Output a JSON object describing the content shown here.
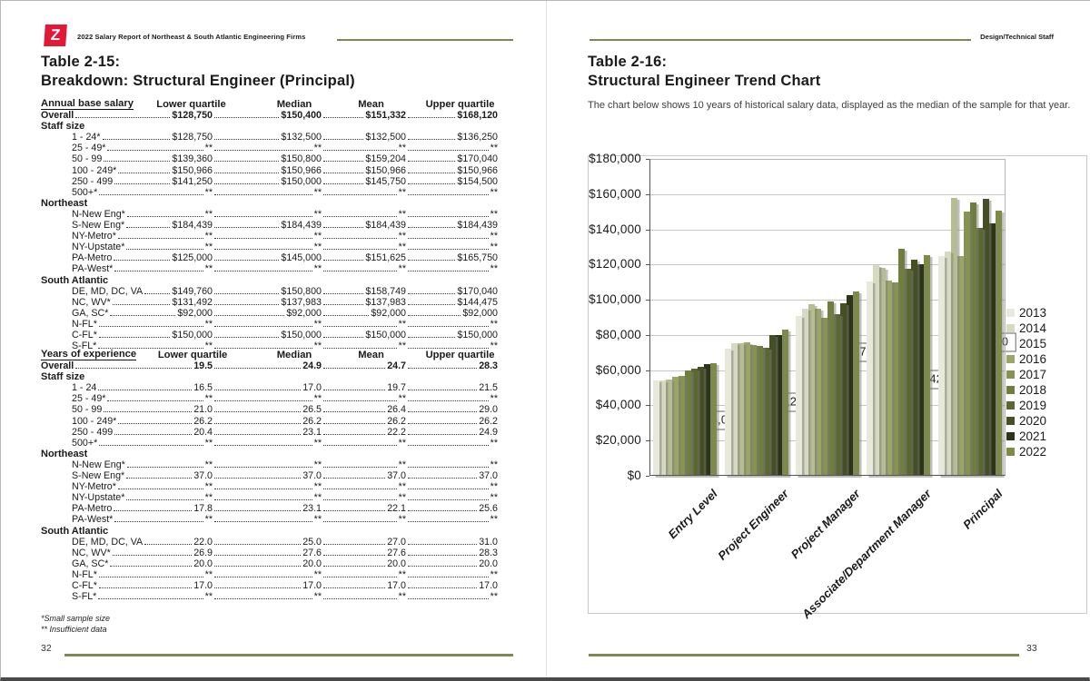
{
  "page_left": {
    "logo_glyph": "Z",
    "header_title": "2022 Salary Report of Northeast & South Atlantic Engineering Firms",
    "title_line1": "Table 2-15:",
    "title_line2": "Breakdown: Structural Engineer (Principal)",
    "tables": [
      {
        "header": {
          "label": "Annual base salary",
          "cols": [
            "Lower quartile",
            "Median",
            "Mean",
            "Upper quartile"
          ]
        },
        "rows": [
          {
            "label": "Overall",
            "style": "overall",
            "values": [
              "$128,750",
              "$150,400",
              "$151,332",
              "$168,120"
            ]
          },
          {
            "label": "Staff size",
            "style": "section"
          },
          {
            "label": "1 - 24*",
            "values": [
              "$128,750",
              "$132,500",
              "$132,500",
              "$136,250"
            ]
          },
          {
            "label": "25 - 49*",
            "values": [
              "**",
              "**",
              "**",
              "**"
            ]
          },
          {
            "label": "50 - 99",
            "values": [
              "$139,360",
              "$150,800",
              "$159,204",
              "$170,040"
            ]
          },
          {
            "label": "100 - 249*",
            "values": [
              "$150,966",
              "$150,966",
              "$150,966",
              "$150,966"
            ]
          },
          {
            "label": "250 - 499",
            "values": [
              "$141,250",
              "$150,000",
              "$145,750",
              "$154,500"
            ]
          },
          {
            "label": "500+*",
            "values": [
              "**",
              "**",
              "**",
              "**"
            ]
          },
          {
            "label": "Northeast",
            "style": "section"
          },
          {
            "label": "N-New Eng*",
            "values": [
              "**",
              "**",
              "**",
              "**"
            ]
          },
          {
            "label": "S-New Eng*",
            "values": [
              "$184,439",
              "$184,439",
              "$184,439",
              "$184,439"
            ]
          },
          {
            "label": "NY-Metro*",
            "values": [
              "**",
              "**",
              "**",
              "**"
            ]
          },
          {
            "label": "NY-Upstate*",
            "values": [
              "**",
              "**",
              "**",
              "**"
            ]
          },
          {
            "label": "PA-Metro",
            "values": [
              "$125,000",
              "$145,000",
              "$151,625",
              "$165,750"
            ]
          },
          {
            "label": "PA-West*",
            "values": [
              "**",
              "**",
              "**",
              "**"
            ]
          },
          {
            "label": "South Atlantic",
            "style": "section"
          },
          {
            "label": "DE, MD, DC, VA",
            "values": [
              "$149,760",
              "$150,800",
              "$158,749",
              "$170,040"
            ]
          },
          {
            "label": "NC, WV*",
            "values": [
              "$131,492",
              "$137,983",
              "$137,983",
              "$144,475"
            ]
          },
          {
            "label": "GA, SC*",
            "values": [
              "$92,000",
              "$92,000",
              "$92,000",
              "$92,000"
            ]
          },
          {
            "label": "N-FL*",
            "values": [
              "**",
              "**",
              "**",
              "**"
            ]
          },
          {
            "label": "C-FL*",
            "values": [
              "$150,000",
              "$150,000",
              "$150,000",
              "$150,000"
            ]
          },
          {
            "label": "S-FL*",
            "values": [
              "**",
              "**",
              "**",
              "**"
            ]
          }
        ]
      },
      {
        "header": {
          "label": "Years of experience",
          "cols": [
            "Lower quartile",
            "Median",
            "Mean",
            "Upper quartile"
          ]
        },
        "rows": [
          {
            "label": "Overall",
            "style": "overall",
            "values": [
              "19.5",
              "24.9",
              "24.7",
              "28.3"
            ]
          },
          {
            "label": "Staff size",
            "style": "section"
          },
          {
            "label": "1 - 24",
            "values": [
              "16.5",
              "17.0",
              "19.7",
              "21.5"
            ]
          },
          {
            "label": "25 - 49*",
            "values": [
              "**",
              "**",
              "**",
              "**"
            ]
          },
          {
            "label": "50 - 99",
            "values": [
              "21.0",
              "26.5",
              "26.4",
              "29.0"
            ]
          },
          {
            "label": "100 - 249*",
            "values": [
              "26.2",
              "26.2",
              "26.2",
              "26.2"
            ]
          },
          {
            "label": "250 - 499",
            "values": [
              "20.4",
              "23.1",
              "22.2",
              "24.9"
            ]
          },
          {
            "label": "500+*",
            "values": [
              "**",
              "**",
              "**",
              "**"
            ]
          },
          {
            "label": "Northeast",
            "style": "section"
          },
          {
            "label": "N-New Eng*",
            "values": [
              "**",
              "**",
              "**",
              "**"
            ]
          },
          {
            "label": "S-New Eng*",
            "values": [
              "37.0",
              "37.0",
              "37.0",
              "37.0"
            ]
          },
          {
            "label": "NY-Metro*",
            "values": [
              "**",
              "**",
              "**",
              "**"
            ]
          },
          {
            "label": "NY-Upstate*",
            "values": [
              "**",
              "**",
              "**",
              "**"
            ]
          },
          {
            "label": "PA-Metro",
            "values": [
              "17.8",
              "23.1",
              "22.1",
              "25.6"
            ]
          },
          {
            "label": "PA-West*",
            "values": [
              "**",
              "**",
              "**",
              "**"
            ]
          },
          {
            "label": "South Atlantic",
            "style": "section"
          },
          {
            "label": "DE, MD, DC, VA",
            "values": [
              "22.0",
              "25.0",
              "27.0",
              "31.0"
            ]
          },
          {
            "label": "NC, WV*",
            "values": [
              "26.9",
              "27.6",
              "27.6",
              "28.3"
            ]
          },
          {
            "label": "GA, SC*",
            "values": [
              "20.0",
              "20.0",
              "20.0",
              "20.0"
            ]
          },
          {
            "label": "N-FL*",
            "values": [
              "**",
              "**",
              "**",
              "**"
            ]
          },
          {
            "label": "C-FL*",
            "values": [
              "17.0",
              "17.0",
              "17.0",
              "17.0"
            ]
          },
          {
            "label": "S-FL*",
            "values": [
              "**",
              "**",
              "**",
              "**"
            ]
          }
        ]
      }
    ],
    "footnotes": [
      "*Small sample size",
      "** Insufficient data"
    ],
    "page_number": "32"
  },
  "page_right": {
    "header_title": "Design/Technical Staff",
    "title_line1": "Table 2-16:",
    "title_line2": "Structural Engineer Trend Chart",
    "intro": "The chart below shows 10 years of historical salary data, displayed as the median of the sample for that year.",
    "page_number": "33"
  },
  "chart_data": {
    "type": "bar",
    "title": "Structural Engineer Trend Chart",
    "xlabel": "",
    "ylabel": "",
    "categories": [
      "Entry Level",
      "Project Engineer",
      "Project Manager",
      "Associate/Department Manager",
      "Principal"
    ],
    "series": [
      {
        "name": "2013",
        "color": "#e8e9db",
        "values": [
          54000,
          72000,
          91000,
          110500,
          125000
        ]
      },
      {
        "name": "2014",
        "color": "#d7d9c1",
        "values": [
          54000,
          75500,
          95000,
          119500,
          127500
        ]
      },
      {
        "name": "2015",
        "color": "#b7bd92",
        "values": [
          54500,
          75500,
          97500,
          118000,
          158000
        ]
      },
      {
        "name": "2016",
        "color": "#9ba567",
        "values": [
          56000,
          76000,
          95000,
          111000,
          125000
        ]
      },
      {
        "name": "2017",
        "color": "#879350",
        "values": [
          56500,
          74500,
          90000,
          110000,
          150000
        ]
      },
      {
        "name": "2018",
        "color": "#6f7d3e",
        "values": [
          60000,
          73500,
          99000,
          129000,
          155500
        ]
      },
      {
        "name": "2019",
        "color": "#5a6830",
        "values": [
          61000,
          72500,
          92000,
          117500,
          141000
        ]
      },
      {
        "name": "2020",
        "color": "#464f23",
        "values": [
          62000,
          80000,
          98000,
          122500,
          157500
        ]
      },
      {
        "name": "2021",
        "color": "#2d3517",
        "values": [
          63500,
          80000,
          102500,
          120000,
          143500
        ]
      },
      {
        "name": "2022",
        "color": "#7d8b47",
        "values": [
          64000,
          83200,
          104770,
          125420,
          150400
        ]
      }
    ],
    "ylim": [
      0,
      180000
    ],
    "ytick_step": 20000,
    "ytick_labels": [
      "$0",
      "$20,000",
      "$40,000",
      "$60,000",
      "$80,000",
      "$100,000",
      "$120,000",
      "$140,000",
      "$160,000",
      "$180,000"
    ],
    "grid": true,
    "legend_position": "right",
    "legend_entries": [
      "2013",
      "2014",
      "2015",
      "2016",
      "2017",
      "2018",
      "2019",
      "2020",
      "2021",
      "2022"
    ],
    "callouts": [
      "$64,000",
      "$83,200",
      "$104,770",
      "$125,420",
      "$150,400"
    ]
  },
  "colors": {
    "accent_olive": "#7e8952",
    "logo_red": "#e31837"
  }
}
